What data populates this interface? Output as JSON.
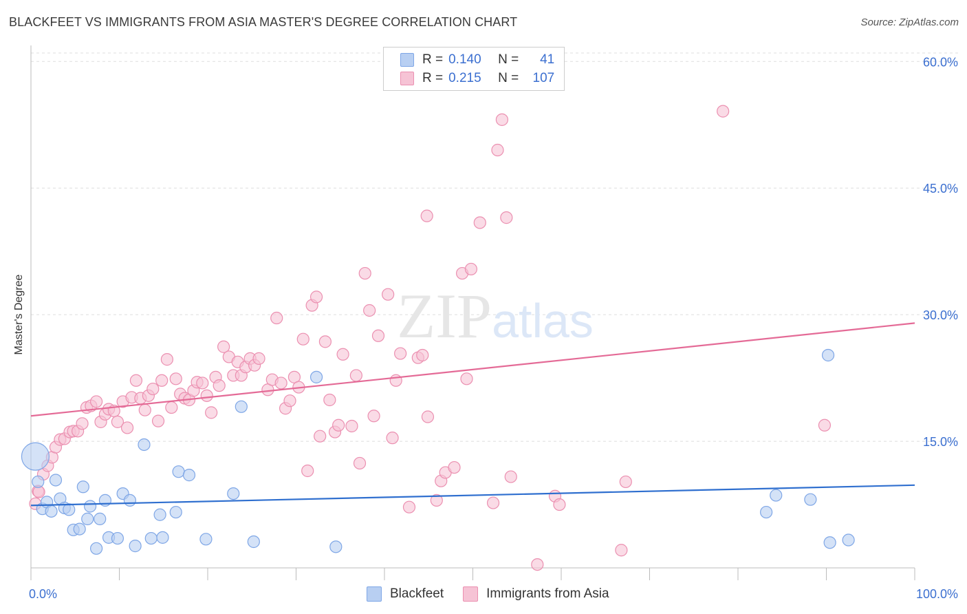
{
  "chart_data": {
    "type": "scatter",
    "title": "BLACKFEET VS IMMIGRANTS FROM ASIA MASTER'S DEGREE CORRELATION CHART",
    "source": "Source: ZipAtlas.com",
    "watermark": "ZIPatlas",
    "xlabel": "",
    "ylabel": "Master's Degree",
    "xlim": [
      0,
      100
    ],
    "ylim": [
      0,
      61
    ],
    "x_tick_labels": [
      "0.0%",
      "100.0%"
    ],
    "y_ticks": [
      15,
      30,
      45,
      60
    ],
    "y_tick_labels": [
      "15.0%",
      "30.0%",
      "45.0%",
      "60.0%"
    ],
    "legend": {
      "rows": [
        {
          "r_label": "R =",
          "r_value": "0.140",
          "n_label": "N =",
          "n_value": "41"
        },
        {
          "r_label": "R =",
          "r_value": "0.215",
          "n_label": "N =",
          "n_value": "107"
        }
      ]
    },
    "series": [
      {
        "name": "Blackfeet",
        "color": "#7ea6e6",
        "fill": "#b8cff2",
        "line_color": "#2f6fcf",
        "trend": [
          [
            0,
            7.4
          ],
          [
            100,
            9.8
          ]
        ],
        "points": [
          [
            0.5,
            13.2
          ],
          [
            0.8,
            10.2
          ],
          [
            1.3,
            7.0
          ],
          [
            1.8,
            7.8
          ],
          [
            2.3,
            6.7
          ],
          [
            2.8,
            10.4
          ],
          [
            3.3,
            8.2
          ],
          [
            3.8,
            7.1
          ],
          [
            4.3,
            6.9
          ],
          [
            4.8,
            4.5
          ],
          [
            5.5,
            4.6
          ],
          [
            5.9,
            9.6
          ],
          [
            6.4,
            5.8
          ],
          [
            6.7,
            7.3
          ],
          [
            7.4,
            2.3
          ],
          [
            7.8,
            5.8
          ],
          [
            8.4,
            8.0
          ],
          [
            8.8,
            3.6
          ],
          [
            9.8,
            3.5
          ],
          [
            10.4,
            8.8
          ],
          [
            11.2,
            8.0
          ],
          [
            11.8,
            2.6
          ],
          [
            12.8,
            14.6
          ],
          [
            13.6,
            3.5
          ],
          [
            14.6,
            6.3
          ],
          [
            14.9,
            3.6
          ],
          [
            16.4,
            6.6
          ],
          [
            16.7,
            11.4
          ],
          [
            17.9,
            11.0
          ],
          [
            19.8,
            3.4
          ],
          [
            22.9,
            8.8
          ],
          [
            23.8,
            19.1
          ],
          [
            25.2,
            3.1
          ],
          [
            32.3,
            22.6
          ],
          [
            34.5,
            2.5
          ],
          [
            83.2,
            6.6
          ],
          [
            84.3,
            8.6
          ],
          [
            88.2,
            8.1
          ],
          [
            90.2,
            25.2
          ],
          [
            90.4,
            3.0
          ],
          [
            92.5,
            3.3
          ]
        ]
      },
      {
        "name": "Immigrants from Asia",
        "color": "#eb8fb0",
        "fill": "#f6c3d5",
        "line_color": "#e46a96",
        "trend": [
          [
            0,
            18.0
          ],
          [
            100,
            29.0
          ]
        ],
        "points": [
          [
            0.5,
            7.6
          ],
          [
            0.8,
            9.1
          ],
          [
            1.4,
            11.1
          ],
          [
            1.9,
            12.1
          ],
          [
            2.4,
            13.1
          ],
          [
            2.8,
            14.3
          ],
          [
            3.3,
            15.2
          ],
          [
            3.8,
            15.3
          ],
          [
            4.4,
            16.1
          ],
          [
            4.8,
            16.2
          ],
          [
            5.3,
            16.2
          ],
          [
            5.8,
            17.1
          ],
          [
            6.3,
            19.0
          ],
          [
            6.8,
            19.2
          ],
          [
            7.4,
            19.7
          ],
          [
            7.9,
            17.3
          ],
          [
            8.4,
            18.2
          ],
          [
            8.8,
            18.8
          ],
          [
            9.4,
            18.6
          ],
          [
            9.8,
            17.3
          ],
          [
            10.4,
            19.7
          ],
          [
            10.9,
            16.6
          ],
          [
            11.4,
            20.2
          ],
          [
            11.9,
            22.2
          ],
          [
            12.4,
            20.1
          ],
          [
            12.9,
            18.7
          ],
          [
            13.3,
            20.4
          ],
          [
            13.8,
            21.2
          ],
          [
            14.4,
            17.4
          ],
          [
            14.8,
            22.2
          ],
          [
            15.4,
            24.7
          ],
          [
            15.9,
            19.0
          ],
          [
            16.4,
            22.4
          ],
          [
            16.9,
            20.6
          ],
          [
            17.4,
            20.1
          ],
          [
            17.9,
            19.9
          ],
          [
            18.4,
            21.0
          ],
          [
            18.8,
            22.0
          ],
          [
            19.4,
            21.9
          ],
          [
            19.9,
            20.4
          ],
          [
            20.4,
            18.4
          ],
          [
            20.9,
            22.6
          ],
          [
            21.3,
            21.6
          ],
          [
            21.8,
            26.2
          ],
          [
            22.4,
            25.0
          ],
          [
            22.9,
            22.8
          ],
          [
            23.4,
            24.4
          ],
          [
            23.8,
            22.8
          ],
          [
            24.3,
            23.8
          ],
          [
            24.8,
            24.8
          ],
          [
            25.3,
            24.0
          ],
          [
            25.8,
            24.8
          ],
          [
            26.8,
            21.1
          ],
          [
            27.3,
            22.3
          ],
          [
            27.8,
            29.6
          ],
          [
            28.3,
            21.9
          ],
          [
            28.8,
            18.9
          ],
          [
            29.3,
            19.8
          ],
          [
            29.8,
            22.6
          ],
          [
            30.3,
            21.4
          ],
          [
            30.8,
            27.1
          ],
          [
            31.3,
            11.5
          ],
          [
            31.8,
            31.1
          ],
          [
            32.3,
            32.1
          ],
          [
            32.7,
            15.6
          ],
          [
            33.3,
            26.8
          ],
          [
            33.8,
            19.9
          ],
          [
            34.4,
            16.1
          ],
          [
            34.8,
            16.9
          ],
          [
            35.3,
            25.3
          ],
          [
            36.3,
            16.8
          ],
          [
            36.8,
            22.8
          ],
          [
            37.2,
            12.4
          ],
          [
            37.8,
            34.9
          ],
          [
            38.3,
            30.5
          ],
          [
            38.8,
            18.0
          ],
          [
            39.3,
            27.5
          ],
          [
            40.4,
            32.4
          ],
          [
            40.9,
            15.4
          ],
          [
            41.3,
            22.2
          ],
          [
            41.8,
            25.4
          ],
          [
            42.8,
            7.2
          ],
          [
            43.8,
            24.9
          ],
          [
            44.3,
            25.2
          ],
          [
            44.8,
            41.7
          ],
          [
            44.9,
            17.9
          ],
          [
            45.9,
            8.0
          ],
          [
            46.4,
            10.3
          ],
          [
            46.9,
            11.3
          ],
          [
            47.9,
            11.9
          ],
          [
            48.8,
            34.9
          ],
          [
            49.3,
            22.4
          ],
          [
            49.8,
            35.4
          ],
          [
            50.8,
            40.9
          ],
          [
            52.3,
            7.7
          ],
          [
            52.8,
            49.5
          ],
          [
            53.3,
            53.1
          ],
          [
            53.8,
            41.5
          ],
          [
            54.3,
            10.8
          ],
          [
            57.3,
            0.4
          ],
          [
            59.3,
            8.5
          ],
          [
            59.8,
            7.5
          ],
          [
            66.8,
            2.1
          ],
          [
            67.3,
            10.2
          ],
          [
            78.3,
            54.1
          ],
          [
            89.8,
            16.9
          ],
          [
            0.9,
            9.0
          ]
        ]
      }
    ]
  },
  "bottom_legend": {
    "items": [
      {
        "label": "Blackfeet"
      },
      {
        "label": "Immigrants from Asia"
      }
    ]
  }
}
